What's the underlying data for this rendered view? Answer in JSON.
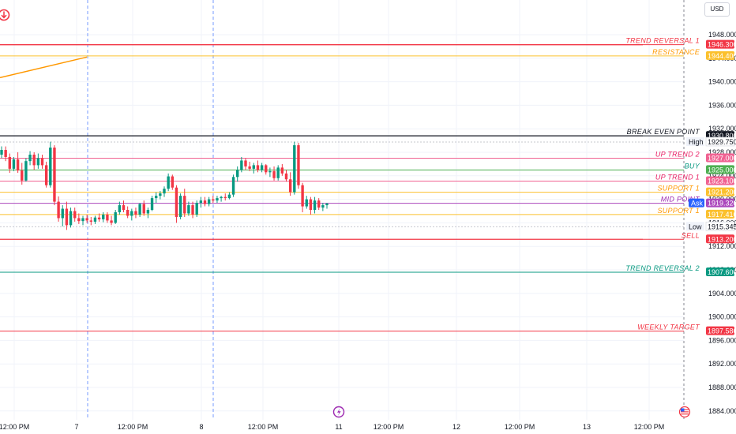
{
  "currency_button": "USD",
  "chart_data": {
    "type": "candlestick",
    "y_axis": {
      "min": 1882,
      "max": 1951,
      "ticks": [
        "1948.000",
        "1944.000",
        "1940.000",
        "1936.000",
        "1932.000",
        "1928.000",
        "1924.000",
        "1920.000",
        "1916.000",
        "1912.000",
        "1908.000",
        "1904.000",
        "1900.000",
        "1896.000",
        "1892.000",
        "1888.000",
        "1884.000"
      ]
    },
    "x_axis": {
      "ticks": [
        "12:00 PM",
        "7",
        "12:00 PM",
        "8",
        "12:00 PM",
        "11",
        "12:00 PM",
        "12",
        "12:00 PM",
        "13",
        "12:00 PM"
      ]
    },
    "levels": [
      {
        "label": "TREND  REVERSAL 1",
        "price": 1946.3,
        "tag": "1946.300",
        "color": "#f23645"
      },
      {
        "label": "RESISTANCE",
        "price": 1944.4,
        "tag": "1944.400",
        "color": "#fbc02d",
        "text_color": "#ff9800"
      },
      {
        "label": "BREAK EVEN  POINT",
        "price": 1930.8,
        "tag": "1930.800",
        "color": "#131722"
      },
      {
        "label": "UP TREND 2",
        "price": 1927.0,
        "tag": "1927.000",
        "color": "#f06292",
        "text_color": "#e91e63"
      },
      {
        "label": "BUY",
        "price": 1925.0,
        "tag": "1925.000",
        "color": "#4caf50",
        "text_color": "#089981"
      },
      {
        "label": "UP TREND 1",
        "price": 1923.1,
        "tag": "1923.100",
        "color": "#f06292",
        "text_color": "#e91e63"
      },
      {
        "label": "SUPPORT  1",
        "price": 1921.2,
        "tag": "1921.200",
        "color": "#fbc02d",
        "text_color": "#ff9800"
      },
      {
        "label": "MID POINT",
        "price": 1919.32,
        "tag": "1919.320",
        "color": "#ab47bc",
        "text_color": "#9c27b0"
      },
      {
        "label": "SUPPORT 1",
        "price": 1917.416,
        "tag": "1917.416",
        "color": "#fbc02d",
        "text_color": "#ff9800"
      },
      {
        "label": "SELL",
        "price": 1913.2,
        "tag": "1913.200",
        "color": "#f23645"
      },
      {
        "label": "TREND REVERSAL 2",
        "price": 1907.6,
        "tag": "1907.600",
        "color": "#089981"
      },
      {
        "label": "WEEKLY TARGET",
        "price": 1897.586,
        "tag": "1897.586",
        "color": "#f23645"
      }
    ],
    "markers": [
      {
        "label": "High",
        "price": 1929.75,
        "tag": "1929.750"
      },
      {
        "label": "Low",
        "price": 1915.345,
        "tag": "1915.345"
      },
      {
        "label": "Ask",
        "price": 1919.32,
        "tag": "1919.320"
      }
    ],
    "trendline": {
      "from": [
        0,
        1940.7
      ],
      "to": [
        110,
        1944.2
      ],
      "color": "#ff9800"
    },
    "colors": {
      "up": "#089981",
      "down": "#f23645",
      "session_line": "#2962ff",
      "grid": "#f0f3fa"
    },
    "candles": [
      [
        1927.6,
        1929.0,
        1927.0,
        1928.4
      ],
      [
        1928.4,
        1929.0,
        1926.5,
        1927.2
      ],
      [
        1927.2,
        1927.8,
        1924.5,
        1925.2
      ],
      [
        1925.2,
        1927.2,
        1924.8,
        1926.8
      ],
      [
        1926.8,
        1928.0,
        1924.5,
        1924.9
      ],
      [
        1924.9,
        1926.2,
        1922.5,
        1923.2
      ],
      [
        1923.2,
        1927.0,
        1923.0,
        1926.5
      ],
      [
        1926.5,
        1928.2,
        1925.8,
        1927.6
      ],
      [
        1927.6,
        1928.0,
        1925.0,
        1925.8
      ],
      [
        1925.8,
        1927.8,
        1925.2,
        1927.0
      ],
      [
        1927.0,
        1927.6,
        1925.2,
        1925.8
      ],
      [
        1925.8,
        1926.4,
        1922.0,
        1922.4
      ],
      [
        1922.4,
        1929.8,
        1922.0,
        1928.8
      ],
      [
        1928.8,
        1929.2,
        1919.0,
        1919.6
      ],
      [
        1919.6,
        1920.5,
        1916.2,
        1916.8
      ],
      [
        1916.8,
        1919.0,
        1915.4,
        1918.4
      ],
      [
        1918.4,
        1919.6,
        1914.8,
        1915.6
      ],
      [
        1915.6,
        1918.6,
        1915.2,
        1918.0
      ],
      [
        1918.0,
        1918.6,
        1916.2,
        1916.8
      ],
      [
        1916.8,
        1917.6,
        1915.8,
        1916.3
      ],
      [
        1916.3,
        1917.2,
        1915.6,
        1916.8
      ],
      [
        1916.8,
        1917.4,
        1916.0,
        1916.4
      ],
      [
        1916.4,
        1917.0,
        1915.6,
        1916.2
      ],
      [
        1916.2,
        1917.2,
        1915.8,
        1916.9
      ],
      [
        1916.9,
        1917.6,
        1916.2,
        1916.6
      ],
      [
        1916.6,
        1917.8,
        1916.1,
        1917.4
      ],
      [
        1917.4,
        1917.8,
        1916.0,
        1916.4
      ],
      [
        1916.4,
        1917.2,
        1915.6,
        1916.0
      ],
      [
        1916.0,
        1918.2,
        1915.8,
        1917.8
      ],
      [
        1917.8,
        1919.6,
        1917.4,
        1919.0
      ],
      [
        1919.0,
        1919.8,
        1917.8,
        1918.2
      ],
      [
        1918.2,
        1918.8,
        1916.8,
        1917.2
      ],
      [
        1917.2,
        1918.4,
        1916.4,
        1918.0
      ],
      [
        1918.0,
        1918.6,
        1916.8,
        1917.4
      ],
      [
        1917.4,
        1919.4,
        1917.0,
        1919.2
      ],
      [
        1919.2,
        1919.8,
        1917.2,
        1917.6
      ],
      [
        1917.6,
        1918.6,
        1916.8,
        1918.2
      ],
      [
        1918.2,
        1920.6,
        1918.0,
        1920.2
      ],
      [
        1920.2,
        1921.2,
        1919.4,
        1920.6
      ],
      [
        1920.6,
        1921.4,
        1920.0,
        1921.0
      ],
      [
        1921.0,
        1922.2,
        1920.4,
        1921.8
      ],
      [
        1921.8,
        1924.4,
        1921.4,
        1923.9
      ],
      [
        1923.9,
        1924.2,
        1921.6,
        1922.0
      ],
      [
        1922.0,
        1922.4,
        1916.0,
        1917.0
      ],
      [
        1917.0,
        1921.0,
        1916.6,
        1920.6
      ],
      [
        1920.6,
        1921.8,
        1917.0,
        1917.6
      ],
      [
        1917.6,
        1919.6,
        1917.2,
        1919.0
      ],
      [
        1919.0,
        1919.6,
        1916.8,
        1917.4
      ],
      [
        1917.4,
        1919.8,
        1917.0,
        1919.4
      ],
      [
        1919.4,
        1920.4,
        1918.6,
        1919.8
      ],
      [
        1919.8,
        1920.4,
        1918.8,
        1919.2
      ],
      [
        1919.2,
        1920.4,
        1918.8,
        1920.0
      ],
      [
        1920.0,
        1920.6,
        1919.4,
        1919.8
      ],
      [
        1919.8,
        1920.6,
        1919.4,
        1920.2
      ],
      [
        1920.2,
        1920.6,
        1919.6,
        1920.4
      ],
      [
        1920.4,
        1921.0,
        1919.8,
        1920.2
      ],
      [
        1920.2,
        1921.2,
        1920.0,
        1920.8
      ],
      [
        1920.8,
        1924.2,
        1920.4,
        1923.8
      ],
      [
        1923.8,
        1925.6,
        1923.0,
        1925.0
      ],
      [
        1925.0,
        1927.2,
        1924.6,
        1926.6
      ],
      [
        1926.6,
        1927.0,
        1925.0,
        1925.6
      ],
      [
        1925.6,
        1926.4,
        1924.8,
        1925.2
      ],
      [
        1925.2,
        1926.2,
        1924.4,
        1925.8
      ],
      [
        1925.8,
        1926.6,
        1924.6,
        1925.0
      ],
      [
        1925.0,
        1926.2,
        1924.6,
        1925.8
      ],
      [
        1925.8,
        1926.0,
        1924.2,
        1924.6
      ],
      [
        1924.6,
        1925.4,
        1923.8,
        1924.8
      ],
      [
        1924.8,
        1925.6,
        1923.2,
        1923.6
      ],
      [
        1923.6,
        1925.8,
        1923.2,
        1925.4
      ],
      [
        1925.4,
        1926.0,
        1924.0,
        1924.4
      ],
      [
        1924.4,
        1925.0,
        1923.0,
        1923.4
      ],
      [
        1923.4,
        1924.6,
        1920.6,
        1921.2
      ],
      [
        1921.2,
        1929.8,
        1920.8,
        1929.2
      ],
      [
        1929.2,
        1929.6,
        1921.8,
        1922.4
      ],
      [
        1922.4,
        1922.8,
        1917.8,
        1918.8
      ],
      [
        1918.8,
        1920.6,
        1918.4,
        1920.0
      ],
      [
        1920.0,
        1920.4,
        1917.4,
        1918.2
      ],
      [
        1918.2,
        1920.4,
        1917.6,
        1919.8
      ],
      [
        1919.8,
        1920.2,
        1918.2,
        1918.6
      ],
      [
        1918.6,
        1919.4,
        1918.0,
        1919.0
      ],
      [
        1919.0,
        1919.4,
        1918.4,
        1919.3
      ]
    ]
  }
}
